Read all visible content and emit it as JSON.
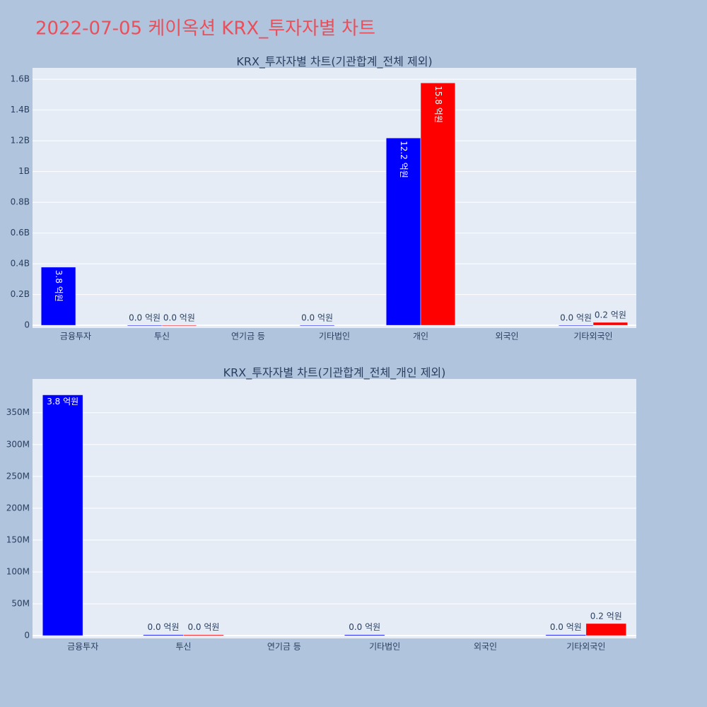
{
  "title": "2022-07-05 케이옥션 KRX_투자자별 차트",
  "chart_data": [
    {
      "type": "bar",
      "title": "KRX_투자자별 차트(기관합계_전체 제외)",
      "categories": [
        "금융투자",
        "투신",
        "연기금 등",
        "기타법인",
        "개인",
        "외국인",
        "기타외국인"
      ],
      "series": [
        {
          "color": "#0000ff",
          "values": [
            378000000,
            1500000,
            null,
            1500000,
            1218000000,
            null,
            1500000
          ],
          "value_labels": [
            "3.8 억원",
            "0.0 억원",
            null,
            "0.0 억원",
            "12.2 억원",
            null,
            "0.0 억원"
          ]
        },
        {
          "color": "#ff0000",
          "values": [
            null,
            1500000,
            null,
            null,
            1576000000,
            null,
            19000000
          ],
          "value_labels": [
            null,
            "0.0 억원",
            null,
            null,
            "15.8 억원",
            null,
            "0.2 억원"
          ]
        }
      ],
      "ylim": [
        -18000000,
        1674000000
      ],
      "yticks": [
        0,
        {
          "value": 200000000,
          "label": "0.2B"
        },
        {
          "value": 400000000,
          "label": "0.4B"
        },
        {
          "value": 600000000,
          "label": "0.6B"
        },
        {
          "value": 800000000,
          "label": "0.8B"
        },
        {
          "value": 1000000000,
          "label": "1B"
        },
        {
          "value": 1200000000,
          "label": "1.2B"
        },
        {
          "value": 1400000000,
          "label": "1.4B"
        },
        {
          "value": 1600000000,
          "label": "1.6B"
        }
      ],
      "grid": true
    },
    {
      "type": "bar",
      "title": "KRX_투자자별 차트(기관합계_전체_개인 제외)",
      "categories": [
        "금융투자",
        "투신",
        "연기금 등",
        "기타법인",
        "외국인",
        "기타외국인"
      ],
      "series": [
        {
          "color": "#0000ff",
          "values": [
            378000000,
            1500000,
            null,
            1500000,
            null,
            1500000
          ],
          "value_labels": [
            "3.8 억원",
            "0.0 억원",
            null,
            "0.0 억원",
            null,
            "0.0 억원"
          ]
        },
        {
          "color": "#ff0000",
          "values": [
            null,
            1500000,
            null,
            null,
            null,
            19000000
          ],
          "value_labels": [
            null,
            "0.0 억원",
            null,
            null,
            null,
            "0.2 억원"
          ]
        }
      ],
      "ylim": [
        -4400000,
        403000000
      ],
      "yticks": [
        0,
        {
          "value": 50000000,
          "label": "50M"
        },
        {
          "value": 100000000,
          "label": "100M"
        },
        {
          "value": 150000000,
          "label": "150M"
        },
        {
          "value": 200000000,
          "label": "200M"
        },
        {
          "value": 250000000,
          "label": "250M"
        },
        {
          "value": 300000000,
          "label": "300M"
        },
        {
          "value": 350000000,
          "label": "350M"
        }
      ],
      "grid": true
    }
  ]
}
